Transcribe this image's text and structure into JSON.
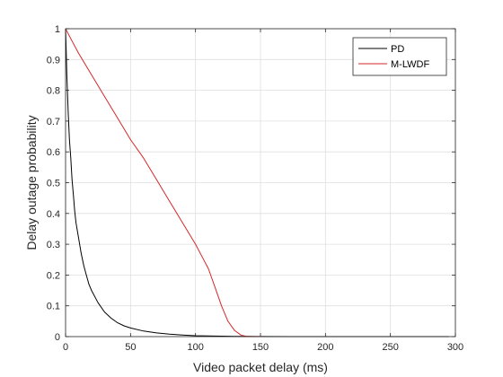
{
  "chart_data": {
    "type": "line",
    "xlabel": "Video packet delay (ms)",
    "ylabel": "Delay outage probability",
    "xlim": [
      0,
      300
    ],
    "ylim": [
      0,
      1
    ],
    "xticks": [
      0,
      50,
      100,
      150,
      200,
      250,
      300
    ],
    "yticks": [
      0,
      0.1,
      0.2,
      0.3,
      0.4,
      0.5,
      0.6,
      0.7,
      0.8,
      0.9,
      1
    ],
    "grid": true,
    "legend_position": "top-right",
    "series": [
      {
        "name": "PD",
        "color": "#000000",
        "x": [
          0,
          0.5,
          1,
          2,
          3,
          4,
          5,
          6,
          7,
          8,
          10,
          12,
          14,
          16,
          18,
          20,
          25,
          30,
          35,
          40,
          45,
          50,
          60,
          70,
          80,
          90,
          100,
          110,
          120,
          130,
          140,
          150,
          175,
          200,
          250,
          295
        ],
        "y": [
          1.0,
          0.93,
          0.85,
          0.73,
          0.64,
          0.58,
          0.51,
          0.46,
          0.41,
          0.37,
          0.32,
          0.27,
          0.23,
          0.2,
          0.17,
          0.15,
          0.11,
          0.08,
          0.06,
          0.045,
          0.035,
          0.028,
          0.018,
          0.012,
          0.008,
          0.005,
          0.003,
          0.002,
          0.0015,
          0.001,
          0.0005,
          0.0003,
          0.0001,
          0,
          0,
          0
        ]
      },
      {
        "name": "M-LWDF",
        "color": "#d62728",
        "x": [
          0,
          5,
          10,
          20,
          30,
          40,
          50,
          60,
          70,
          80,
          90,
          100,
          105,
          110,
          115,
          120,
          125,
          130,
          135,
          140,
          145,
          150
        ],
        "y": [
          1.0,
          0.96,
          0.92,
          0.85,
          0.78,
          0.71,
          0.64,
          0.58,
          0.51,
          0.44,
          0.37,
          0.3,
          0.26,
          0.22,
          0.16,
          0.1,
          0.05,
          0.02,
          0.005,
          0,
          0,
          0
        ]
      }
    ]
  }
}
